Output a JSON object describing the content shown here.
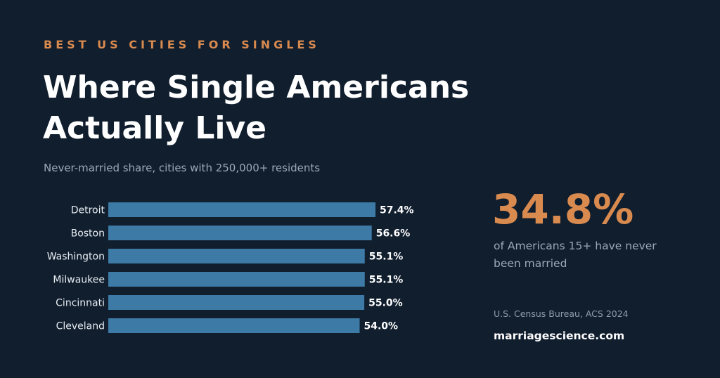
{
  "header": {
    "eyebrow": "BEST US CITIES FOR SINGLES",
    "title": "Where Single Americans Actually Live",
    "subtitle": "Never-married share, cities with 250,000+ residents"
  },
  "chart_data": {
    "type": "bar",
    "orientation": "horizontal",
    "categories": [
      "Detroit",
      "Boston",
      "Washington",
      "Milwaukee",
      "Cincinnati",
      "Cleveland"
    ],
    "values": [
      57.4,
      56.6,
      55.1,
      55.1,
      55.0,
      54.0
    ],
    "value_labels": [
      "57.4%",
      "56.6%",
      "55.1%",
      "55.1%",
      "55.0%",
      "54.0%"
    ],
    "unit": "%",
    "bar_color": "#3d7aa6",
    "label_color": "#ffffff",
    "grid": false
  },
  "stat": {
    "value": "34.8%",
    "label": "of Americans 15+ have never been married"
  },
  "footer": {
    "source": "U.S. Census Bureau, ACS 2024",
    "site": "marriagescience.com"
  },
  "colors": {
    "background": "#101e2e",
    "accent": "#d98a4f",
    "muted": "#9aa8b8"
  }
}
